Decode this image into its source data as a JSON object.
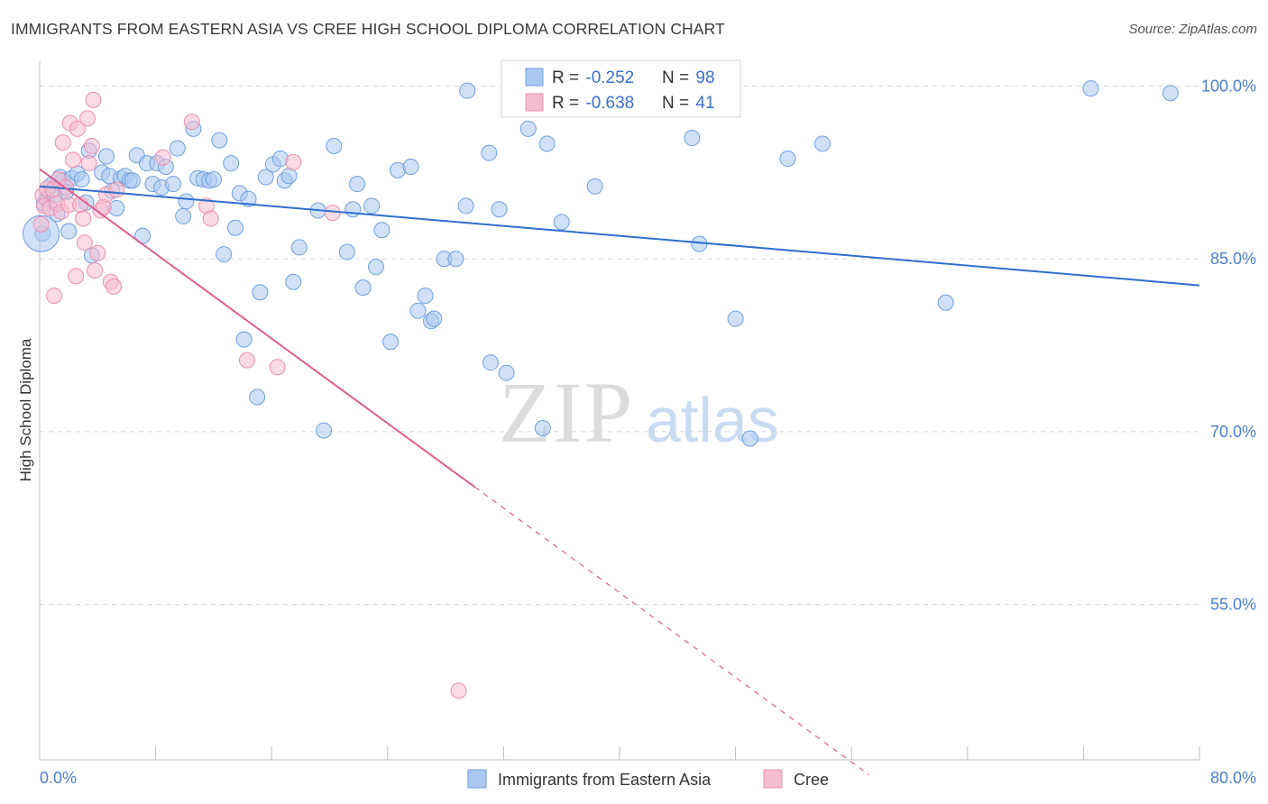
{
  "title": "IMMIGRANTS FROM EASTERN ASIA VS CREE HIGH SCHOOL DIPLOMA CORRELATION CHART",
  "source": "Source: ZipAtlas.com",
  "watermark": {
    "zip": "ZIP",
    "atlas": "atlas"
  },
  "colors": {
    "blue_fill": "#aac8f0",
    "blue_stroke": "#6f9fe0",
    "blue_line": "#2e6fd0",
    "pink_fill": "#f6bcd0",
    "pink_stroke": "#ec8fb0",
    "pink_line": "#e0608e",
    "tick_text": "#4a7fd4",
    "grid": "#d8d8d8"
  },
  "legend": {
    "rows": [
      {
        "r_label": "R = ",
        "r_value": "-0.252",
        "n_label": "N = ",
        "n_value": "98"
      },
      {
        "r_label": "R = ",
        "r_value": "-0.638",
        "n_label": "N = ",
        "n_value": "41"
      }
    ]
  },
  "chart_data": {
    "type": "scatter",
    "title": "IMMIGRANTS FROM EASTERN ASIA VS CREE HIGH SCHOOL DIPLOMA CORRELATION CHART",
    "xlabel": "",
    "ylabel": "High School Diploma",
    "xlim": [
      0,
      80
    ],
    "ylim": [
      41.5,
      102
    ],
    "x_tick_labels": [
      "0.0%",
      "80.0%"
    ],
    "y_ticks": [
      100,
      85,
      70,
      55
    ],
    "y_tick_labels": [
      "100.0%",
      "85.0%",
      "70.0%",
      "55.0%"
    ],
    "grid": true,
    "legend_position": "top-center",
    "series": [
      {
        "name": "Immigrants from Eastern Asia",
        "color": "#aac8f0",
        "trend": {
          "x": [
            0,
            80
          ],
          "y": [
            91.3,
            82.7
          ]
        },
        "points": [
          [
            0.2,
            87.2
          ],
          [
            0.3,
            89.8
          ],
          [
            0.5,
            90.2
          ],
          [
            0.8,
            91.4
          ],
          [
            1.0,
            90.5
          ],
          [
            1.2,
            88.9
          ],
          [
            1.4,
            92.1
          ],
          [
            1.6,
            91.8
          ],
          [
            1.8,
            90.8
          ],
          [
            2.0,
            87.4
          ],
          [
            2.2,
            92.0
          ],
          [
            2.6,
            92.4
          ],
          [
            2.9,
            91.9
          ],
          [
            3.2,
            89.9
          ],
          [
            3.4,
            94.4
          ],
          [
            3.6,
            85.3
          ],
          [
            4.3,
            92.5
          ],
          [
            4.6,
            93.9
          ],
          [
            4.8,
            92.2
          ],
          [
            5.0,
            90.9
          ],
          [
            5.3,
            89.4
          ],
          [
            5.6,
            92.0
          ],
          [
            5.9,
            92.2
          ],
          [
            6.2,
            91.8
          ],
          [
            6.4,
            91.8
          ],
          [
            6.7,
            94.0
          ],
          [
            7.1,
            87.0
          ],
          [
            7.4,
            93.3
          ],
          [
            7.8,
            91.5
          ],
          [
            8.1,
            93.3
          ],
          [
            8.4,
            91.2
          ],
          [
            8.7,
            93.0
          ],
          [
            9.2,
            91.5
          ],
          [
            9.5,
            94.6
          ],
          [
            9.9,
            88.7
          ],
          [
            10.1,
            90.0
          ],
          [
            10.6,
            96.3
          ],
          [
            10.9,
            92.0
          ],
          [
            11.3,
            91.9
          ],
          [
            11.7,
            91.8
          ],
          [
            12.0,
            91.9
          ],
          [
            12.4,
            95.3
          ],
          [
            12.7,
            85.4
          ],
          [
            13.2,
            93.3
          ],
          [
            13.5,
            87.7
          ],
          [
            13.8,
            90.7
          ],
          [
            14.1,
            78.0
          ],
          [
            14.4,
            90.2
          ],
          [
            15.0,
            73.0
          ],
          [
            15.2,
            82.1
          ],
          [
            15.6,
            92.1
          ],
          [
            16.1,
            93.2
          ],
          [
            16.6,
            93.7
          ],
          [
            16.9,
            91.8
          ],
          [
            17.2,
            92.2
          ],
          [
            17.5,
            83.0
          ],
          [
            17.9,
            86.0
          ],
          [
            19.2,
            89.2
          ],
          [
            19.6,
            70.1
          ],
          [
            20.3,
            94.8
          ],
          [
            21.2,
            85.6
          ],
          [
            21.6,
            89.3
          ],
          [
            21.9,
            91.5
          ],
          [
            22.3,
            82.5
          ],
          [
            22.9,
            89.6
          ],
          [
            23.2,
            84.3
          ],
          [
            23.6,
            87.5
          ],
          [
            24.2,
            77.8
          ],
          [
            24.7,
            92.7
          ],
          [
            25.6,
            93.0
          ],
          [
            26.1,
            80.5
          ],
          [
            26.6,
            81.8
          ],
          [
            27.0,
            79.6
          ],
          [
            27.2,
            79.8
          ],
          [
            27.9,
            85.0
          ],
          [
            28.7,
            85.0
          ],
          [
            29.4,
            89.6
          ],
          [
            31.1,
            76.0
          ],
          [
            31.7,
            89.3
          ],
          [
            32.2,
            75.1
          ],
          [
            33.7,
            96.3
          ],
          [
            34.7,
            70.3
          ],
          [
            35.0,
            95.0
          ],
          [
            36.9,
            99.6
          ],
          [
            38.3,
            91.3
          ],
          [
            45.5,
            86.3
          ],
          [
            48.0,
            79.8
          ],
          [
            49.0,
            69.4
          ],
          [
            51.6,
            93.7
          ],
          [
            54.0,
            95.0
          ],
          [
            62.5,
            81.2
          ],
          [
            72.5,
            99.8
          ],
          [
            78.0,
            99.4
          ],
          [
            40.0,
            99.8
          ],
          [
            29.5,
            99.6
          ],
          [
            36.0,
            88.2
          ],
          [
            31.0,
            94.2
          ],
          [
            45.0,
            95.5
          ]
        ],
        "large_point": [
          0.1,
          87.2
        ]
      },
      {
        "name": "Cree",
        "color": "#f6bcd0",
        "trend": {
          "x": [
            0,
            30
          ],
          "y": [
            92.8,
            65.2
          ]
        },
        "trend_dashed": {
          "x": [
            30,
            57.2
          ],
          "y": [
            65.2,
            40.2
          ]
        },
        "points": [
          [
            0.1,
            88.0
          ],
          [
            0.2,
            90.5
          ],
          [
            0.3,
            89.6
          ],
          [
            0.5,
            91.1
          ],
          [
            0.7,
            89.4
          ],
          [
            0.9,
            91.0
          ],
          [
            1.0,
            81.8
          ],
          [
            1.2,
            89.8
          ],
          [
            1.3,
            91.9
          ],
          [
            1.5,
            89.1
          ],
          [
            1.6,
            95.1
          ],
          [
            1.8,
            91.2
          ],
          [
            2.0,
            89.7
          ],
          [
            2.1,
            96.8
          ],
          [
            2.3,
            93.6
          ],
          [
            2.5,
            83.5
          ],
          [
            2.6,
            96.3
          ],
          [
            2.8,
            89.7
          ],
          [
            3.0,
            88.5
          ],
          [
            3.1,
            86.4
          ],
          [
            3.3,
            97.2
          ],
          [
            3.4,
            93.3
          ],
          [
            3.6,
            94.8
          ],
          [
            3.7,
            98.8
          ],
          [
            3.8,
            84.0
          ],
          [
            4.0,
            85.5
          ],
          [
            4.2,
            89.2
          ],
          [
            4.4,
            89.5
          ],
          [
            4.6,
            90.6
          ],
          [
            4.9,
            83.0
          ],
          [
            5.1,
            82.6
          ],
          [
            5.3,
            91.0
          ],
          [
            8.5,
            93.8
          ],
          [
            10.5,
            96.9
          ],
          [
            11.5,
            89.6
          ],
          [
            11.8,
            88.5
          ],
          [
            14.3,
            76.2
          ],
          [
            16.4,
            75.6
          ],
          [
            17.5,
            93.4
          ],
          [
            20.2,
            89.0
          ],
          [
            28.9,
            47.5
          ]
        ]
      }
    ]
  },
  "bottom_legend": [
    {
      "label": "Immigrants from Eastern Asia"
    },
    {
      "label": "Cree"
    }
  ]
}
